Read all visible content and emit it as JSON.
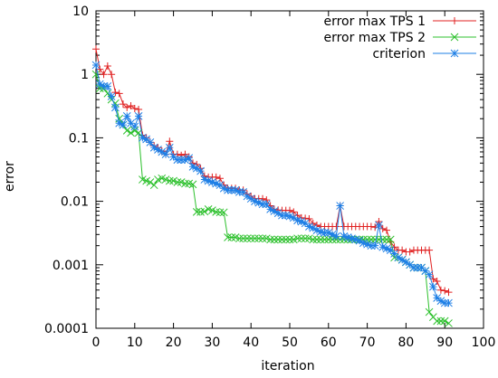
{
  "chart_data": {
    "type": "line",
    "title": "",
    "xlabel": "iteration",
    "ylabel": "error",
    "xlim": [
      0,
      100
    ],
    "ylim": [
      0.0001,
      10
    ],
    "yscale": "log",
    "grid": false,
    "legend_position": "top-right",
    "x_ticks": [
      0,
      10,
      20,
      30,
      40,
      50,
      60,
      70,
      80,
      90,
      100
    ],
    "x_tick_labels": [
      "0",
      "10",
      "20",
      "30",
      "40",
      "50",
      "60",
      "70",
      "80",
      "90",
      "100"
    ],
    "y_ticks": [
      0.0001,
      0.001,
      0.01,
      0.1,
      1,
      10
    ],
    "y_tick_labels": [
      "0.0001",
      "0.001",
      "0.01",
      "0.1",
      "1",
      "10"
    ],
    "series": [
      {
        "name": "error max TPS 1",
        "color": "#e02020",
        "marker": "plus",
        "x": [
          0,
          1,
          2,
          3,
          4,
          5,
          6,
          7,
          8,
          9,
          10,
          11,
          12,
          13,
          14,
          15,
          16,
          17,
          18,
          19,
          20,
          21,
          22,
          23,
          24,
          25,
          26,
          27,
          28,
          29,
          30,
          31,
          32,
          33,
          34,
          35,
          36,
          37,
          38,
          39,
          40,
          41,
          42,
          43,
          44,
          45,
          46,
          47,
          48,
          49,
          50,
          51,
          52,
          53,
          54,
          55,
          56,
          57,
          58,
          59,
          60,
          61,
          62,
          63,
          64,
          65,
          66,
          67,
          68,
          69,
          70,
          71,
          72,
          73,
          74,
          75,
          76,
          77,
          78,
          79,
          80,
          81,
          82,
          83,
          84,
          85,
          86,
          87,
          88,
          89,
          90,
          91
        ],
        "y": [
          2.5,
          1.2,
          1.0,
          1.35,
          1.0,
          0.52,
          0.5,
          0.34,
          0.3,
          0.32,
          0.29,
          0.28,
          0.11,
          0.1,
          0.085,
          0.075,
          0.07,
          0.062,
          0.055,
          0.088,
          0.055,
          0.055,
          0.053,
          0.055,
          0.05,
          0.04,
          0.038,
          0.033,
          0.025,
          0.024,
          0.024,
          0.024,
          0.023,
          0.018,
          0.016,
          0.016,
          0.016,
          0.015,
          0.015,
          0.013,
          0.012,
          0.011,
          0.011,
          0.011,
          0.0105,
          0.0085,
          0.0075,
          0.0073,
          0.0072,
          0.0072,
          0.0072,
          0.0068,
          0.006,
          0.0055,
          0.0054,
          0.0053,
          0.0045,
          0.0042,
          0.004,
          0.004,
          0.004,
          0.004,
          0.004,
          0.0085,
          0.004,
          0.004,
          0.004,
          0.004,
          0.004,
          0.004,
          0.004,
          0.004,
          0.0039,
          0.0048,
          0.0037,
          0.0035,
          0.0023,
          0.0019,
          0.0017,
          0.0017,
          0.0016,
          0.0016,
          0.0017,
          0.0017,
          0.0017,
          0.0017,
          0.0017,
          0.0006,
          0.00055,
          0.0004,
          0.00039,
          0.00037
        ]
      },
      {
        "name": "error max TPS 2",
        "color": "#2cc02c",
        "marker": "cross",
        "x": [
          0,
          1,
          2,
          3,
          4,
          5,
          6,
          7,
          8,
          9,
          10,
          11,
          12,
          13,
          14,
          15,
          16,
          17,
          18,
          19,
          20,
          21,
          22,
          23,
          24,
          25,
          26,
          27,
          28,
          29,
          30,
          31,
          32,
          33,
          34,
          35,
          36,
          37,
          38,
          39,
          40,
          41,
          42,
          43,
          44,
          45,
          46,
          47,
          48,
          49,
          50,
          51,
          52,
          53,
          54,
          55,
          56,
          57,
          58,
          59,
          60,
          61,
          62,
          63,
          64,
          65,
          66,
          67,
          68,
          69,
          70,
          71,
          72,
          73,
          74,
          75,
          76,
          77,
          78,
          79,
          80,
          81,
          82,
          83,
          84,
          85,
          86,
          87,
          88,
          89,
          90,
          91
        ],
        "y": [
          1.0,
          0.6,
          0.6,
          0.5,
          0.4,
          0.35,
          0.2,
          0.16,
          0.13,
          0.12,
          0.13,
          0.12,
          0.022,
          0.021,
          0.02,
          0.018,
          0.022,
          0.023,
          0.022,
          0.021,
          0.021,
          0.02,
          0.02,
          0.019,
          0.019,
          0.0185,
          0.0068,
          0.0068,
          0.0069,
          0.0075,
          0.0072,
          0.0068,
          0.0067,
          0.0067,
          0.0027,
          0.0027,
          0.0027,
          0.0026,
          0.0026,
          0.0026,
          0.0026,
          0.0026,
          0.0026,
          0.0026,
          0.0026,
          0.0025,
          0.0025,
          0.0025,
          0.0025,
          0.0025,
          0.0025,
          0.0025,
          0.0026,
          0.0026,
          0.0026,
          0.0026,
          0.0025,
          0.0025,
          0.0025,
          0.0025,
          0.0025,
          0.0025,
          0.0025,
          0.0025,
          0.0025,
          0.0025,
          0.0025,
          0.0025,
          0.0025,
          0.0025,
          0.0025,
          0.0025,
          0.0025,
          0.0025,
          0.0025,
          0.0025,
          0.0025,
          0.0013,
          0.0013,
          0.0012,
          0.0011,
          0.001,
          0.0009,
          0.0009,
          0.0009,
          0.0008,
          0.00018,
          0.00015,
          0.00013,
          0.00013,
          0.00013,
          0.00012
        ]
      },
      {
        "name": "criterion",
        "color": "#1e7fe6",
        "marker": "star",
        "x": [
          0,
          1,
          2,
          3,
          4,
          5,
          6,
          7,
          8,
          9,
          10,
          11,
          12,
          13,
          14,
          15,
          16,
          17,
          18,
          19,
          20,
          21,
          22,
          23,
          24,
          25,
          26,
          27,
          28,
          29,
          30,
          31,
          32,
          33,
          34,
          35,
          36,
          37,
          38,
          39,
          40,
          41,
          42,
          43,
          44,
          45,
          46,
          47,
          48,
          49,
          50,
          51,
          52,
          53,
          54,
          55,
          56,
          57,
          58,
          59,
          60,
          61,
          62,
          63,
          64,
          65,
          66,
          67,
          68,
          69,
          70,
          71,
          72,
          73,
          74,
          75,
          76,
          77,
          78,
          79,
          80,
          81,
          82,
          83,
          84,
          85,
          86,
          87,
          88,
          89,
          90,
          91
        ],
        "y": [
          1.4,
          0.7,
          0.65,
          0.65,
          0.45,
          0.3,
          0.17,
          0.16,
          0.22,
          0.17,
          0.15,
          0.22,
          0.1,
          0.095,
          0.085,
          0.07,
          0.065,
          0.06,
          0.055,
          0.07,
          0.05,
          0.045,
          0.045,
          0.045,
          0.048,
          0.035,
          0.033,
          0.03,
          0.022,
          0.021,
          0.02,
          0.019,
          0.018,
          0.016,
          0.015,
          0.015,
          0.015,
          0.014,
          0.014,
          0.012,
          0.011,
          0.01,
          0.0095,
          0.009,
          0.009,
          0.0075,
          0.007,
          0.0065,
          0.006,
          0.006,
          0.0058,
          0.0055,
          0.005,
          0.0048,
          0.0045,
          0.004,
          0.0038,
          0.0035,
          0.0033,
          0.0032,
          0.0032,
          0.003,
          0.0028,
          0.0085,
          0.0028,
          0.0027,
          0.0026,
          0.0025,
          0.0024,
          0.0022,
          0.0021,
          0.002,
          0.002,
          0.0042,
          0.0019,
          0.0018,
          0.0017,
          0.0015,
          0.0013,
          0.0012,
          0.0011,
          0.001,
          0.0009,
          0.0009,
          0.0009,
          0.0008,
          0.0007,
          0.00045,
          0.0003,
          0.00027,
          0.00025,
          0.00025
        ]
      }
    ]
  }
}
